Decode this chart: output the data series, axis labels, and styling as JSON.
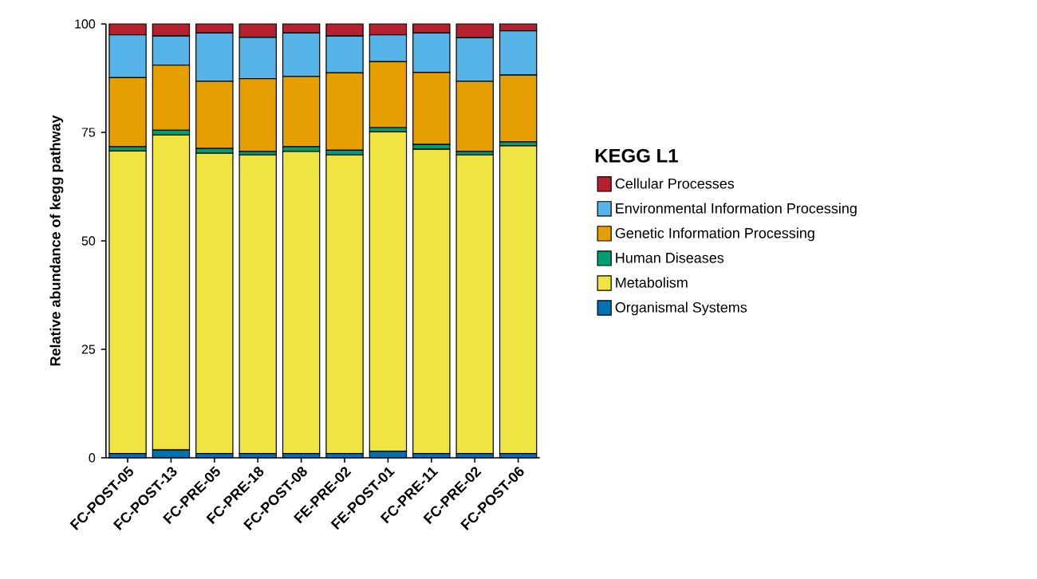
{
  "chart_data": {
    "type": "bar",
    "stacked": true,
    "ylabel": "Relative abundance of kegg pathway",
    "legend_title": "KEGG L1",
    "legend": "right",
    "categories": [
      "FC-POST-05",
      "FC-POST-13",
      "FC-PRE-05",
      "FC-PRE-18",
      "FC-POST-08",
      "FE-PRE-02",
      "FE-POST-01",
      "FC-PRE-11",
      "FC-PRE-02",
      "FC-POST-06"
    ],
    "ylim": [
      0,
      100
    ],
    "yticks": [
      0,
      25,
      50,
      75,
      100
    ],
    "series": [
      {
        "name": "Organismal Systems",
        "color": "#0072b2",
        "values": [
          1.0,
          1.8,
          1.0,
          1.0,
          1.0,
          1.0,
          1.5,
          1.0,
          1.0,
          1.0
        ]
      },
      {
        "name": "Metabolism",
        "color": "#f0e442",
        "values": [
          69.7,
          72.6,
          69.2,
          68.8,
          69.6,
          68.8,
          73.6,
          70.1,
          68.8,
          70.9
        ]
      },
      {
        "name": "Human Diseases",
        "color": "#009e73",
        "values": [
          1.0,
          1.1,
          1.1,
          0.8,
          1.1,
          1.1,
          1.0,
          1.1,
          0.8,
          0.9
        ]
      },
      {
        "name": "Genetic Information Processing",
        "color": "#e69f00",
        "values": [
          15.9,
          15.0,
          15.5,
          16.8,
          16.2,
          17.8,
          15.2,
          16.6,
          16.2,
          15.4
        ]
      },
      {
        "name": "Environmental Information Processing",
        "color": "#56b4e9",
        "values": [
          9.9,
          6.7,
          11.1,
          9.5,
          10.0,
          8.5,
          6.2,
          9.1,
          10.0,
          10.2
        ]
      },
      {
        "name": "Cellular Processes",
        "color": "#b5202e",
        "values": [
          2.5,
          2.8,
          2.1,
          3.1,
          2.1,
          2.8,
          2.5,
          2.1,
          3.2,
          1.6
        ]
      }
    ]
  }
}
